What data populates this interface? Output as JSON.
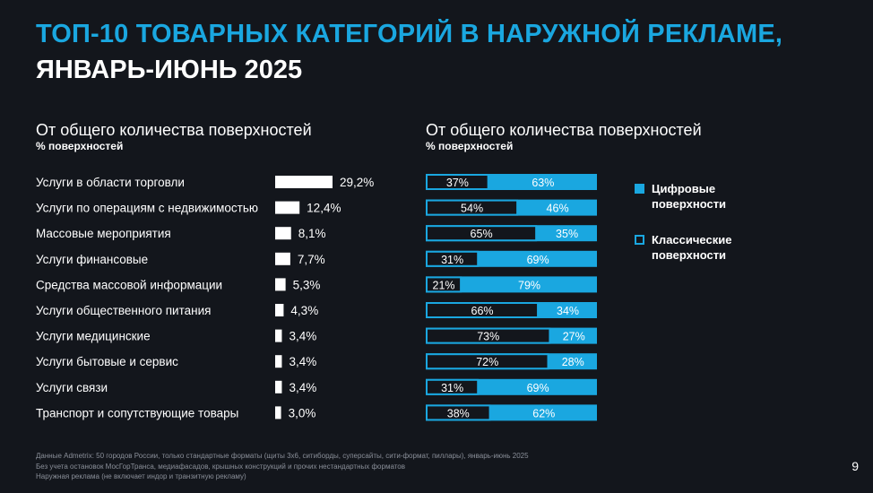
{
  "title_line1": "ТОП-10 ТОВАРНЫХ КАТЕГОРИЙ В НАРУЖНОЙ РЕКЛАМЕ,",
  "title_line2": "ЯНВАРЬ-ИЮНЬ 2025",
  "colors": {
    "accent": "#1aa7e0",
    "bar_white": "#ffffff",
    "background": "#13161c"
  },
  "chart_data": [
    {
      "type": "bar",
      "orientation": "horizontal",
      "title": "От общего количества поверхностей",
      "subtitle": "% поверхностей",
      "categories": [
        "Услуги в области торговли",
        "Услуги по операциям с недвижимостью",
        "Массовые мероприятия",
        "Услуги финансовые",
        "Средства массовой информации",
        "Услуги общественного питания",
        "Услуги медицинские",
        "Услуги бытовые и сервис",
        "Услуги связи",
        "Транспорт и сопутствующие товары"
      ],
      "values": [
        29.2,
        12.4,
        8.1,
        7.7,
        5.3,
        4.3,
        3.4,
        3.4,
        3.4,
        3.0
      ],
      "value_labels": [
        "29,2%",
        "12,4%",
        "8,1%",
        "7,7%",
        "5,3%",
        "4,3%",
        "3,4%",
        "3,4%",
        "3,4%",
        "3,0%"
      ]
    },
    {
      "type": "bar",
      "orientation": "horizontal",
      "stacked": "100%",
      "title": "От общего количества поверхностей",
      "subtitle": "% поверхностей",
      "legend_position": "right",
      "series": [
        {
          "name": "Классические поверхности",
          "values": [
            37,
            54,
            65,
            31,
            21,
            66,
            73,
            72,
            31,
            38
          ],
          "labels": [
            "37%",
            "54%",
            "65%",
            "31%",
            "21%",
            "66%",
            "73%",
            "72%",
            "31%",
            "38%"
          ]
        },
        {
          "name": "Цифровые поверхности",
          "values": [
            63,
            46,
            35,
            69,
            79,
            34,
            27,
            28,
            69,
            62
          ],
          "labels": [
            "63%",
            "46%",
            "35%",
            "69%",
            "79%",
            "34%",
            "27%",
            "28%",
            "69%",
            "62%"
          ]
        }
      ]
    }
  ],
  "legend": {
    "digital": "Цифровые\nповерхности",
    "classic": "Классические\nповерхности"
  },
  "footnotes": [
    "Данные Admetrix: 50 городов России, только стандартные форматы (щиты 3х6, ситиборды, суперсайты, сити-формат, пиллары), январь-июнь 2025",
    "Без учета остановок МосГорТранса, медиафасадов, крышных конструкций и прочих нестандартных форматов",
    "Наружная реклама (не включает индор и транзитную рекламу)"
  ],
  "page_number": "9"
}
